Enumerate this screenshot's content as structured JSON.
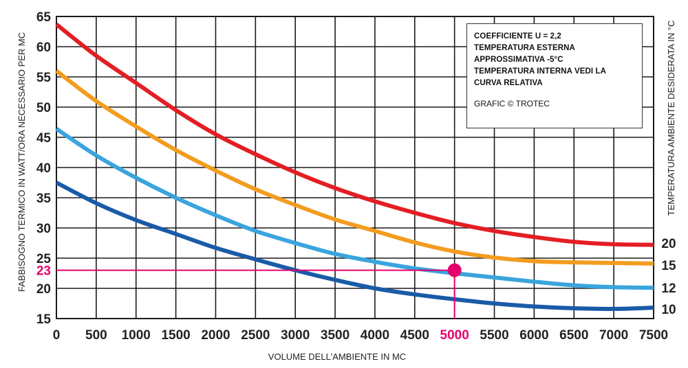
{
  "chart_data": {
    "type": "line",
    "xlabel": "VOLUME DELL'AMBIENTE IN MC",
    "ylabel": "FABBISOGNO TERMICO IN WATT/ORA NECESSARIO PER MC",
    "y2label": "TEMPERATURA AMBIENTE DESIDERATA IN °C",
    "xlim": [
      0,
      7500
    ],
    "ylim": [
      15,
      65
    ],
    "x_ticks": [
      0,
      500,
      1000,
      1500,
      2000,
      2500,
      3000,
      3500,
      4000,
      4500,
      5000,
      5500,
      6000,
      6500,
      7000,
      7500
    ],
    "x_tick_labels": [
      "0",
      "500",
      "1000",
      "1500",
      "2000",
      "2500",
      "3000",
      "3500",
      "4000",
      "4500",
      "5000",
      "5500",
      "6000",
      "6500",
      "7000",
      "7500"
    ],
    "y_ticks": [
      15,
      20,
      25,
      30,
      35,
      40,
      45,
      50,
      55,
      60,
      65
    ],
    "y_tick_labels": [
      "15",
      "20",
      "25",
      "30",
      "35",
      "40",
      "45",
      "50",
      "55",
      "60",
      "65"
    ],
    "grid": true,
    "series": [
      {
        "name": "20",
        "color": "#e31e24",
        "x": [
          0,
          500,
          1000,
          1500,
          2000,
          2500,
          3000,
          3500,
          4000,
          4500,
          5000,
          5500,
          6000,
          6500,
          7000,
          7500
        ],
        "values": [
          63.7,
          58.5,
          54.0,
          49.5,
          45.5,
          42.2,
          39.2,
          36.6,
          34.4,
          32.5,
          30.8,
          29.5,
          28.5,
          27.7,
          27.3,
          27.2
        ]
      },
      {
        "name": "15",
        "color": "#f39c1f",
        "x": [
          0,
          500,
          1000,
          1500,
          2000,
          2500,
          3000,
          3500,
          4000,
          4500,
          5000,
          5500,
          6000,
          6500,
          7000,
          7500
        ],
        "values": [
          56.0,
          51.0,
          46.8,
          42.9,
          39.5,
          36.4,
          33.8,
          31.4,
          29.5,
          27.6,
          26.1,
          25.1,
          24.5,
          24.3,
          24.2,
          24.1
        ]
      },
      {
        "name": "12",
        "color": "#3aa5dd",
        "x": [
          0,
          500,
          1000,
          1500,
          2000,
          2500,
          3000,
          3500,
          4000,
          4500,
          5000,
          5500,
          6000,
          6500,
          7000,
          7500
        ],
        "values": [
          46.4,
          42.0,
          38.3,
          35.0,
          32.1,
          29.5,
          27.5,
          25.7,
          24.4,
          23.3,
          22.5,
          21.8,
          21.1,
          20.5,
          20.2,
          20.1
        ]
      },
      {
        "name": "10",
        "color": "#1a5ba7",
        "x": [
          0,
          500,
          1000,
          1500,
          2000,
          2500,
          3000,
          3500,
          4000,
          4500,
          5000,
          5500,
          6000,
          6500,
          7000,
          7500
        ],
        "values": [
          37.5,
          34.1,
          31.3,
          29.0,
          26.7,
          24.8,
          23.0,
          21.4,
          20.0,
          19.0,
          18.2,
          17.5,
          17.0,
          16.7,
          16.6,
          16.8
        ]
      }
    ],
    "right_labels": [
      "20",
      "15",
      "12",
      "10"
    ],
    "highlight": {
      "x": 5000,
      "y": 23,
      "x_label": "5000",
      "y_label": "23",
      "curve_label": "12",
      "color": "#e5006d"
    },
    "annotation": {
      "lines": [
        "COEFFICIENTE U = 2,2",
        "TEMPERATURA ESTERNA",
        "APPROSSIMATIVA -5°C",
        "TEMPERATURA INTERNA VEDI LA",
        "CURVA RELATIVA"
      ],
      "credit": "GRAFIC © TROTEC"
    }
  }
}
